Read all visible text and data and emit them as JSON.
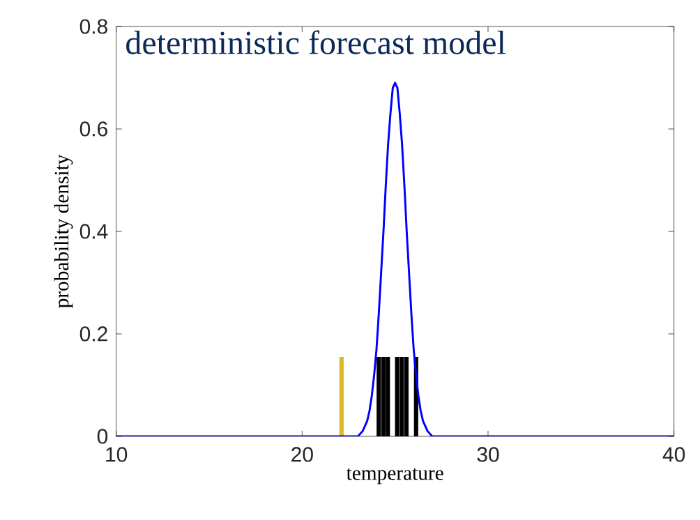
{
  "chart_data": {
    "type": "line",
    "title": "deterministic forecast model",
    "xlabel": "temperature",
    "ylabel": "probability density",
    "xlim": [
      10,
      40
    ],
    "ylim": [
      0,
      0.8
    ],
    "xticks": [
      10,
      20,
      30,
      40
    ],
    "yticks": [
      0,
      0.2,
      0.4,
      0.6,
      0.8
    ],
    "series": [
      {
        "color": "#0000ff",
        "x": [
          10,
          22.5,
          23,
          23.25,
          23.375,
          23.5,
          23.625,
          23.75,
          23.875,
          24,
          24.125,
          24.25,
          24.375,
          24.5,
          24.625,
          24.75,
          24.875,
          25,
          25.125,
          25.25,
          25.375,
          25.5,
          25.625,
          25.75,
          25.875,
          26,
          26.125,
          26.25,
          26.375,
          26.5,
          26.625,
          26.75,
          27,
          27.5,
          40
        ],
        "values": [
          0,
          0,
          0.0,
          0.01,
          0.02,
          0.03,
          0.05,
          0.08,
          0.12,
          0.17,
          0.24,
          0.32,
          0.4,
          0.49,
          0.57,
          0.63,
          0.68,
          0.69,
          0.68,
          0.63,
          0.57,
          0.49,
          0.4,
          0.32,
          0.24,
          0.17,
          0.12,
          0.08,
          0.05,
          0.03,
          0.02,
          0.01,
          0.0,
          0,
          0
        ]
      },
      {
        "type": "bar",
        "color": "#000000",
        "x": [
          24.12,
          24.37,
          24.61,
          25.11,
          25.36,
          25.61,
          26.13
        ],
        "values": [
          0.155,
          0.155,
          0.155,
          0.155,
          0.155,
          0.155,
          0.155
        ]
      },
      {
        "type": "bar",
        "color": "#dbb927",
        "x": [
          22.12
        ],
        "values": [
          0.155
        ]
      }
    ]
  }
}
